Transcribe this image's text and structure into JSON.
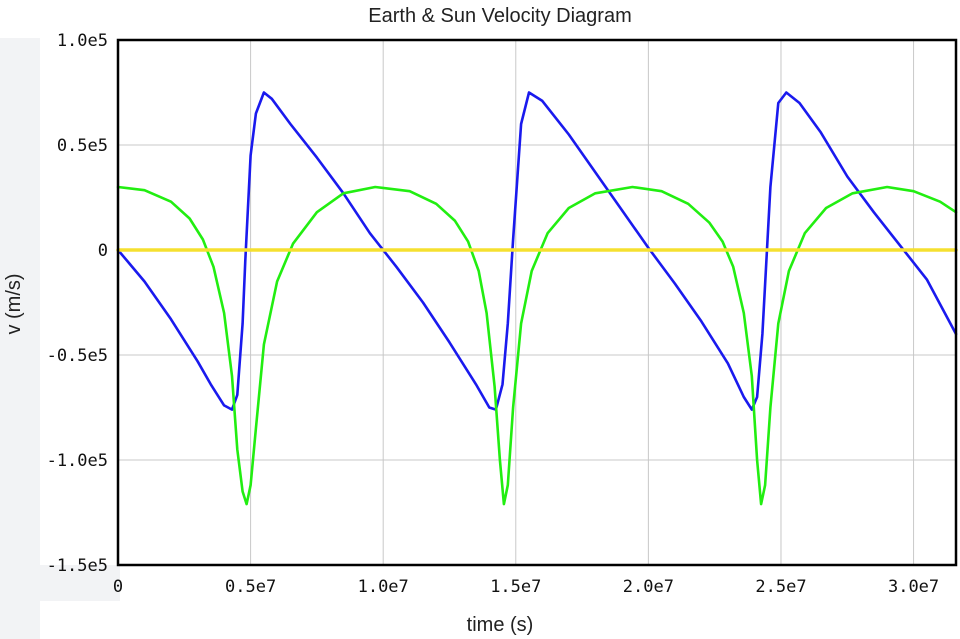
{
  "chart_data": {
    "type": "line",
    "title": "Earth & Sun Velocity Diagram",
    "xlabel": "time (s)",
    "ylabel": "v (m/s)",
    "xlim": [
      0,
      31600000
    ],
    "ylim": [
      -150000,
      100000
    ],
    "grid": true,
    "x_ticks": [
      {
        "value": 0,
        "label": "0"
      },
      {
        "value": 5000000,
        "label": "0.5e7"
      },
      {
        "value": 10000000,
        "label": "1.0e7"
      },
      {
        "value": 15000000,
        "label": "1.5e7"
      },
      {
        "value": 20000000,
        "label": "2.0e7"
      },
      {
        "value": 25000000,
        "label": "2.5e7"
      },
      {
        "value": 30000000,
        "label": "3.0e7"
      }
    ],
    "y_ticks": [
      {
        "value": 100000,
        "label": "1.0e5"
      },
      {
        "value": 50000,
        "label": "0.5e5"
      },
      {
        "value": 0,
        "label": "0"
      },
      {
        "value": -50000,
        "label": "-0.5e5"
      },
      {
        "value": -100000,
        "label": "-1.0e5"
      },
      {
        "value": -150000,
        "label": "-1.5e5"
      }
    ],
    "series": [
      {
        "color": "#1a1aee",
        "x": [
          0,
          1000000,
          2000000,
          3000000,
          3500000,
          4000000,
          4300000,
          4500000,
          4700000,
          4800000,
          5000000,
          5200000,
          5500000,
          5800000,
          6500000,
          7500000,
          8500000,
          9500000,
          10500000,
          11500000,
          12500000,
          13500000,
          14000000,
          14250000,
          14500000,
          14700000,
          14900000,
          15200000,
          15500000,
          16000000,
          17000000,
          18000000,
          19000000,
          20000000,
          21000000,
          22000000,
          23000000,
          23600000,
          23900000,
          24100000,
          24300000,
          24600000,
          24900000,
          25200000,
          25700000,
          26500000,
          27500000,
          28500000,
          29500000,
          30500000,
          31600000
        ],
        "values": [
          0,
          -15000,
          -33000,
          -53000,
          -64000,
          -74000,
          -76000,
          -69000,
          -35000,
          -5000,
          45000,
          65000,
          75000,
          72000,
          60000,
          44000,
          27000,
          8000,
          -8000,
          -25000,
          -44000,
          -64000,
          -75000,
          -76000,
          -64000,
          -35000,
          5000,
          60000,
          75000,
          71000,
          55000,
          37000,
          19000,
          1000,
          -16000,
          -34000,
          -54000,
          -70000,
          -76000,
          -70000,
          -40000,
          30000,
          70000,
          75000,
          70000,
          56000,
          35000,
          18000,
          2000,
          -14000,
          -40000
        ]
      },
      {
        "color": "#22ee11",
        "x": [
          0,
          1000000,
          2000000,
          2700000,
          3200000,
          3600000,
          4000000,
          4300000,
          4500000,
          4700000,
          4850000,
          5000000,
          5200000,
          5500000,
          6000000,
          6600000,
          7500000,
          8500000,
          9700000,
          11000000,
          12000000,
          12700000,
          13200000,
          13600000,
          13900000,
          14200000,
          14400000,
          14550000,
          14700000,
          14900000,
          15200000,
          15600000,
          16200000,
          17000000,
          18000000,
          19400000,
          20500000,
          21500000,
          22300000,
          22800000,
          23200000,
          23600000,
          23900000,
          24100000,
          24250000,
          24400000,
          24600000,
          24900000,
          25300000,
          25900000,
          26700000,
          27700000,
          29000000,
          30000000,
          31000000,
          31600000
        ],
        "values": [
          30000,
          28500,
          23000,
          15000,
          5000,
          -8000,
          -30000,
          -60000,
          -95000,
          -115000,
          -121000,
          -112000,
          -85000,
          -45000,
          -15000,
          3000,
          18000,
          27000,
          30000,
          28000,
          22000,
          14000,
          4000,
          -10000,
          -30000,
          -65000,
          -100000,
          -121000,
          -112000,
          -75000,
          -35000,
          -10000,
          8000,
          20000,
          27000,
          30000,
          28000,
          22000,
          13000,
          4000,
          -8000,
          -30000,
          -60000,
          -100000,
          -121000,
          -112000,
          -75000,
          -35000,
          -10000,
          8000,
          20000,
          27000,
          30000,
          28000,
          23000,
          18000
        ]
      },
      {
        "color": "#f5e030",
        "x": [
          0,
          31600000
        ],
        "values": [
          0,
          0
        ]
      }
    ]
  }
}
